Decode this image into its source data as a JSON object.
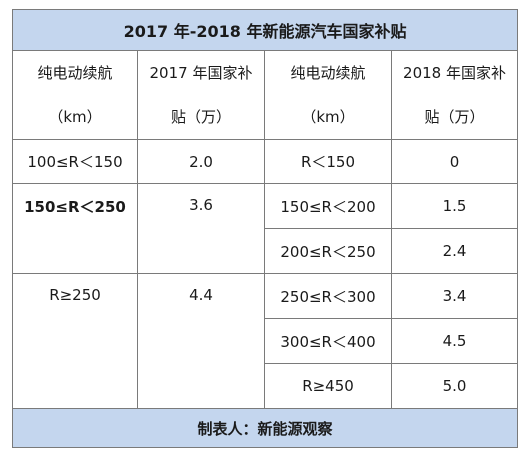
{
  "title": "2017 年-2018 年新能源汽车国家补贴",
  "headers": {
    "col1_line1": "纯电动续航",
    "col1_line2": "（km）",
    "col2_line1": "2017 年国家补",
    "col2_line2": "贴（万）",
    "col3_line1": "纯电动续航",
    "col3_line2": "（km）",
    "col4_line1": "2018 年国家补",
    "col4_line2": "贴（万）"
  },
  "rows": {
    "r1": {
      "range2017": "100≤R＜150",
      "sub2017": "2.0",
      "range2018": "R＜150",
      "sub2018": "0"
    },
    "r2": {
      "range2017": "150≤R＜250",
      "sub2017": "3.6",
      "range2018": "150≤R＜200",
      "sub2018": "1.5"
    },
    "r3": {
      "range2018": "200≤R＜250",
      "sub2018": "2.4"
    },
    "r4": {
      "range2017": "R≥250",
      "sub2017": "4.4",
      "range2018": "250≤R＜300",
      "sub2018": "3.4"
    },
    "r5": {
      "range2018": "300≤R＜400",
      "sub2018": "4.5"
    },
    "r6": {
      "range2018": "R≥450",
      "sub2018": "5.0"
    }
  },
  "footer": "制表人：新能源观察",
  "colors": {
    "header_fill": "#c4d6ee",
    "border": "#7a7a7a"
  }
}
